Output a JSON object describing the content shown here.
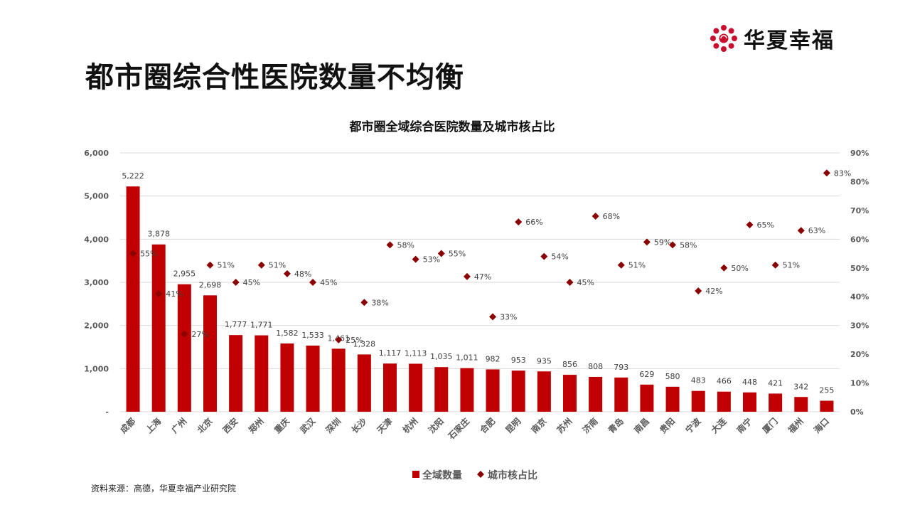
{
  "page": {
    "title": "都市圈综合性医院数量不均衡",
    "source": "资料来源：高德，华夏幸福产业研究院",
    "logo_text": "华夏幸福",
    "logo_icon": "flower-dots-icon"
  },
  "colors": {
    "bar": "#C00000",
    "marker": "#8B0000",
    "grid": "#D9D9D9",
    "brand": "#C8102E"
  },
  "chart_data": {
    "type": "bar",
    "title": "都市圈全域综合医院数量及城市核占比",
    "categories": [
      "成都",
      "上海",
      "广州",
      "北京",
      "西安",
      "郑州",
      "重庆",
      "武汉",
      "深圳",
      "长沙",
      "天津",
      "杭州",
      "沈阳",
      "石家庄",
      "合肥",
      "昆明",
      "南京",
      "苏州",
      "济南",
      "青岛",
      "南昌",
      "贵阳",
      "宁波",
      "大连",
      "南宁",
      "厦门",
      "福州",
      "海口"
    ],
    "series": [
      {
        "name": "全域数量",
        "type": "bar",
        "axis": "left",
        "values": [
          5222,
          3878,
          2955,
          2698,
          1777,
          1771,
          1582,
          1533,
          1461,
          1328,
          1117,
          1113,
          1035,
          1011,
          982,
          953,
          935,
          856,
          808,
          793,
          629,
          580,
          483,
          466,
          448,
          421,
          342,
          255
        ],
        "labels": [
          "5,222",
          "3,878",
          "2,955",
          "2,698",
          "1,777",
          "1,771",
          "1,582",
          "1,533",
          "1,461",
          "1,328",
          "1,117",
          "1,113",
          "1,035",
          "1,011",
          "982",
          "953",
          "935",
          "856",
          "808",
          "793",
          "629",
          "580",
          "483",
          "466",
          "448",
          "421",
          "342",
          "255"
        ]
      },
      {
        "name": "城市核占比",
        "type": "scatter",
        "axis": "right",
        "values": [
          55,
          41,
          27,
          51,
          45,
          51,
          48,
          45,
          25,
          38,
          58,
          53,
          55,
          47,
          33,
          66,
          54,
          45,
          68,
          51,
          59,
          58,
          42,
          50,
          65,
          51,
          63,
          83
        ],
        "labels": [
          "55%",
          "41%",
          "27%",
          "51%",
          "45%",
          "51%",
          "48%",
          "45%",
          "25%",
          "38%",
          "58%",
          "53%",
          "55%",
          "47%",
          "33%",
          "66%",
          "54%",
          "45%",
          "68%",
          "51%",
          "59%",
          "58%",
          "42%",
          "50%",
          "65%",
          "51%",
          "63%",
          "83%"
        ]
      }
    ],
    "left_axis": {
      "ylim": [
        0,
        6000
      ],
      "ticks": [
        "-",
        "1,000",
        "2,000",
        "3,000",
        "4,000",
        "5,000",
        "6,000"
      ]
    },
    "right_axis": {
      "ylim": [
        0,
        90
      ],
      "ticks": [
        "0%",
        "10%",
        "20%",
        "30%",
        "40%",
        "50%",
        "60%",
        "70%",
        "80%",
        "90%"
      ]
    },
    "grid": true,
    "legend": {
      "position": "bottom",
      "items": [
        "全域数量",
        "城市核占比"
      ]
    }
  }
}
